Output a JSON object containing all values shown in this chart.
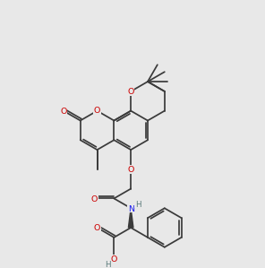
{
  "bg_color": "#e8e8e8",
  "bond_color": "#3a3a3a",
  "O_color": "#cc0000",
  "N_color": "#1a1aee",
  "C_color": "#3a3a3a",
  "H_color": "#5a7a7a",
  "lw": 1.25,
  "fs": 6.8,
  "bl": 22.0
}
